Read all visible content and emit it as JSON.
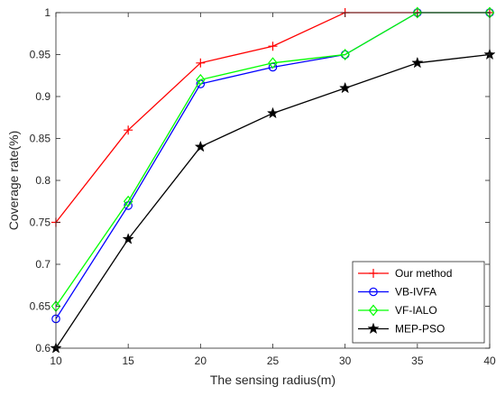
{
  "chart_data": {
    "type": "line",
    "title": "",
    "xlabel": "The sensing radius(m)",
    "ylabel": "Coverage rate(%)",
    "x": [
      10,
      15,
      20,
      25,
      30,
      35,
      40
    ],
    "xlim": [
      10,
      40
    ],
    "ylim": [
      0.6,
      1.0
    ],
    "xticks": [
      "10",
      "15",
      "20",
      "25",
      "30",
      "35",
      "40"
    ],
    "yticks": [
      "0.6",
      "0.65",
      "0.7",
      "0.75",
      "0.8",
      "0.85",
      "0.9",
      "0.95",
      "1"
    ],
    "grid": false,
    "legend_position": "bottom-right",
    "series": [
      {
        "name": "Our method",
        "color": "#ff0000",
        "marker": "plus",
        "values": [
          0.75,
          0.86,
          0.94,
          0.96,
          1.0,
          1.0,
          1.0
        ]
      },
      {
        "name": "VB-IVFA",
        "color": "#0000ff",
        "marker": "circle",
        "values": [
          0.635,
          0.77,
          0.915,
          0.935,
          0.95,
          1.0,
          1.0
        ]
      },
      {
        "name": "VF-IALO",
        "color": "#00ff00",
        "marker": "diamond",
        "values": [
          0.65,
          0.775,
          0.92,
          0.94,
          0.95,
          1.0,
          1.0
        ]
      },
      {
        "name": "MEP-PSO",
        "color": "#000000",
        "marker": "star",
        "values": [
          0.6,
          0.73,
          0.84,
          0.88,
          0.91,
          0.94,
          0.95
        ]
      }
    ]
  }
}
